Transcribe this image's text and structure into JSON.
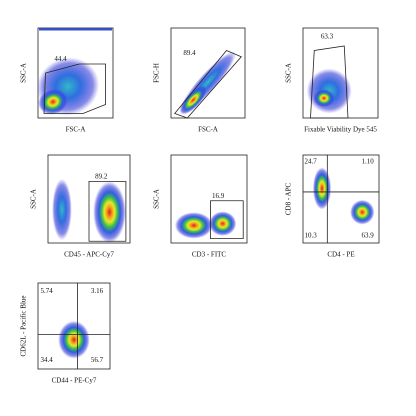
{
  "panels": [
    {
      "x_label": "FSC-A",
      "y_label": "SSC-A",
      "gates": [
        "44.4"
      ]
    },
    {
      "x_label": "FSC-A",
      "y_label": "FSC-H",
      "gates": [
        "89.4"
      ]
    },
    {
      "x_label": "Fixable Viability Dye 545",
      "y_label": "SSC-A",
      "gates": [
        "63.3"
      ]
    },
    {
      "x_label": "CD45 - APC-Cy7",
      "y_label": "SSC-A",
      "gates": [
        "89.2"
      ]
    },
    {
      "x_label": "CD3 - FITC",
      "y_label": "SSC-A",
      "gates": [
        "16.9"
      ]
    },
    {
      "x_label": "CD4 - PE",
      "y_label": "CD8 - APC",
      "gates": [
        "24.7",
        "1.10",
        "10.3",
        "63.9"
      ]
    },
    {
      "x_label": "CD44 - PE-Cy7",
      "y_label": "CD62L - Pacific Blue",
      "gates": [
        "5.74",
        "3.16",
        "34.4",
        "56.7"
      ]
    }
  ]
}
